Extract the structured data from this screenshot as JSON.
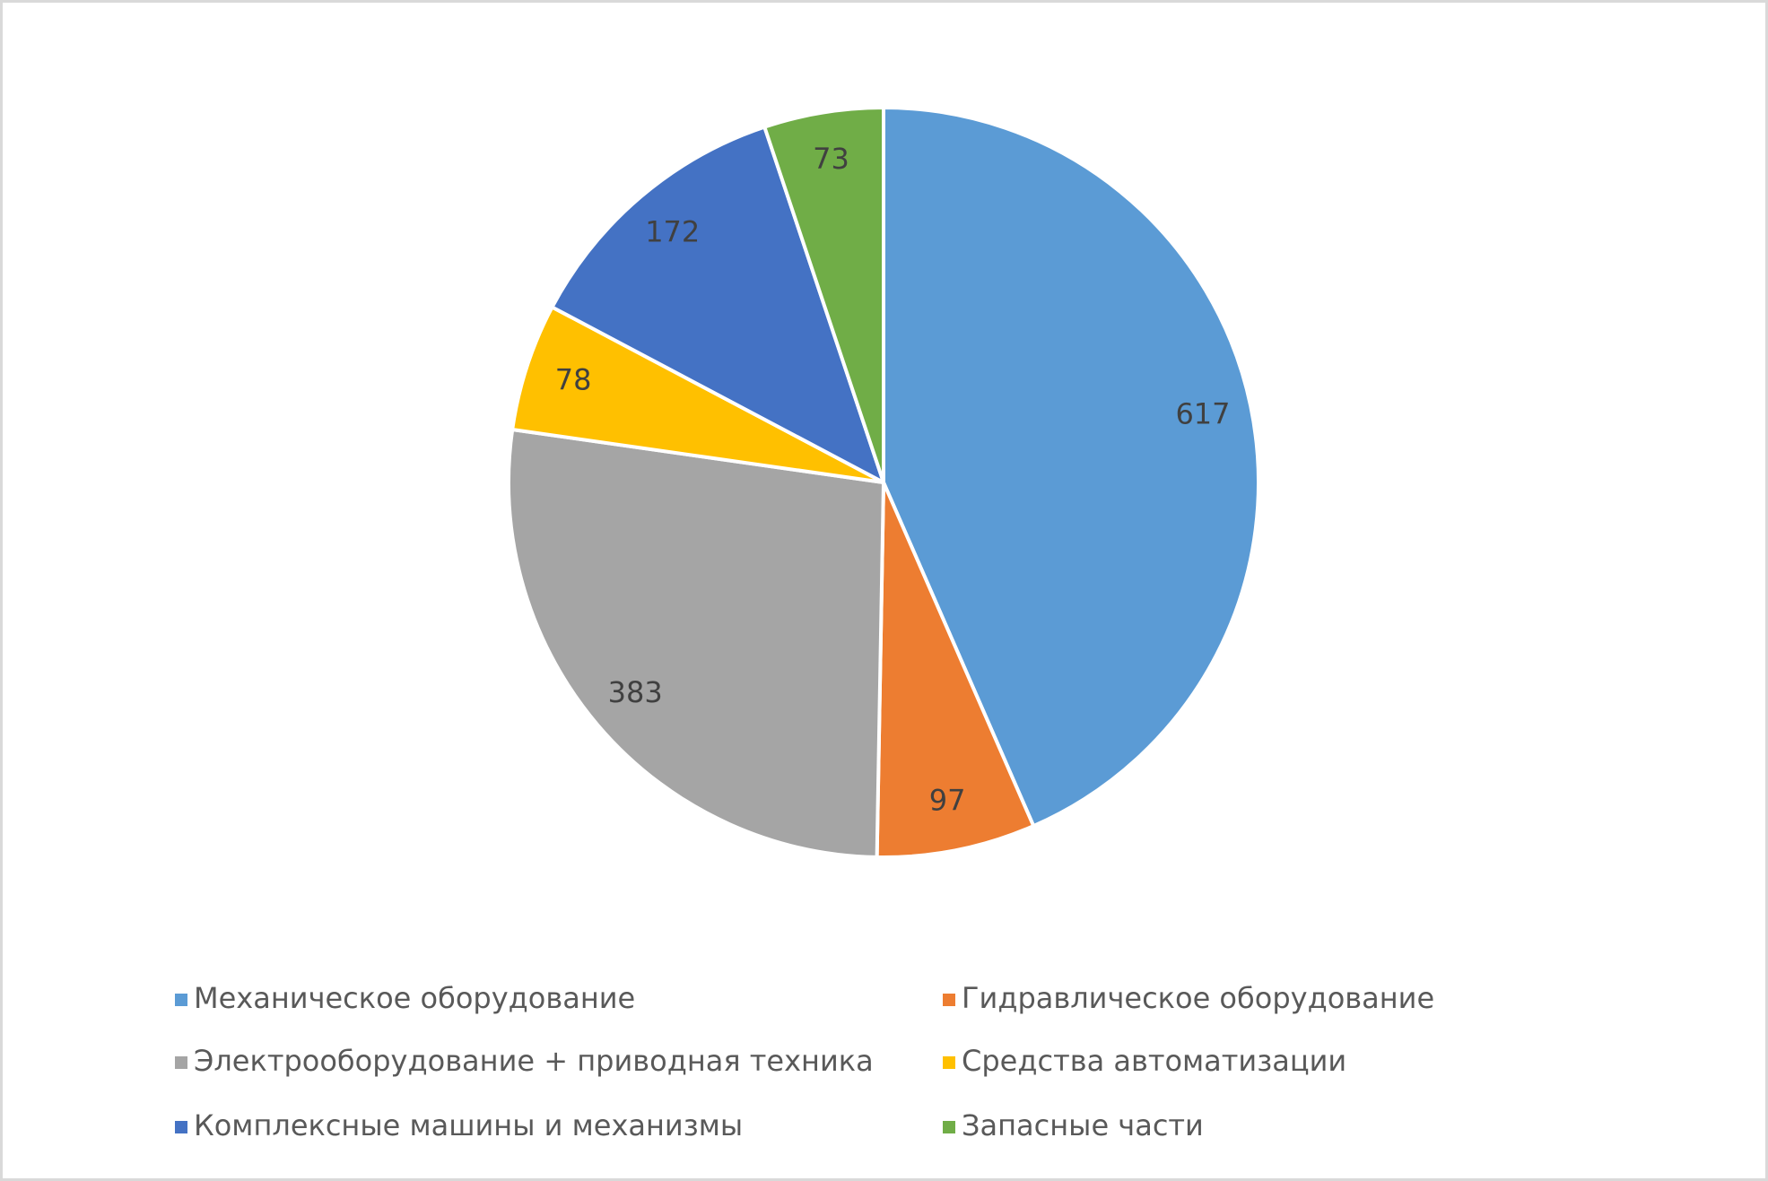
{
  "chart_data": {
    "type": "pie",
    "categories": [
      "Механическое оборудование",
      "Гидравлическое оборудование",
      "Электрооборудование + приводная техника",
      "Средства автоматизации",
      "Комплексные машины и механизмы",
      "Запасные части"
    ],
    "values": [
      617,
      97,
      383,
      78,
      172,
      73
    ],
    "colors": [
      "#5b9bd5",
      "#ed7d31",
      "#a5a5a5",
      "#ffc000",
      "#4472c4",
      "#70ad47"
    ]
  }
}
